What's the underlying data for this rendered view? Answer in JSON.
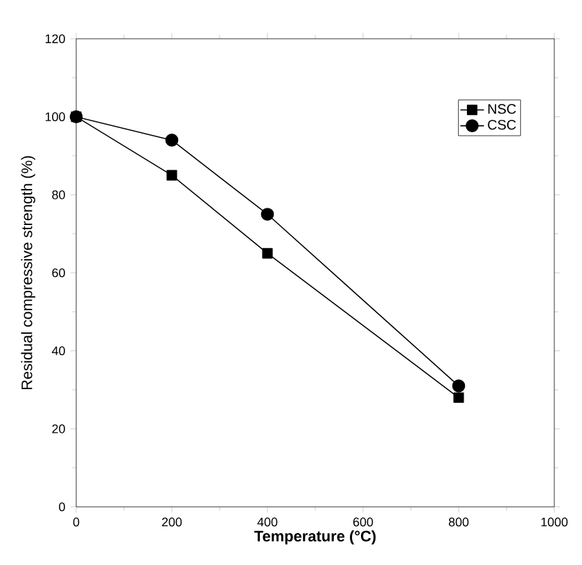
{
  "chart_data": {
    "type": "line",
    "xlabel": "Temperature (°C)",
    "ylabel": "Residual compressive strength (%)",
    "x": [
      0,
      200,
      400,
      800
    ],
    "series": [
      {
        "name": "NSC",
        "color": "#000000",
        "marker": "square",
        "values": [
          100,
          85,
          65,
          28
        ]
      },
      {
        "name": "CSC",
        "color": "#000000",
        "marker": "circle",
        "values": [
          100,
          94,
          75,
          31
        ]
      }
    ],
    "xlim": [
      0,
      1000
    ],
    "xticks": [
      0,
      200,
      400,
      600,
      800,
      1000
    ],
    "ylim": [
      0,
      120
    ],
    "yticks": [
      0,
      20,
      40,
      60,
      80,
      100,
      120
    ],
    "legend": "top right",
    "grid": false,
    "line_style": "solid"
  }
}
